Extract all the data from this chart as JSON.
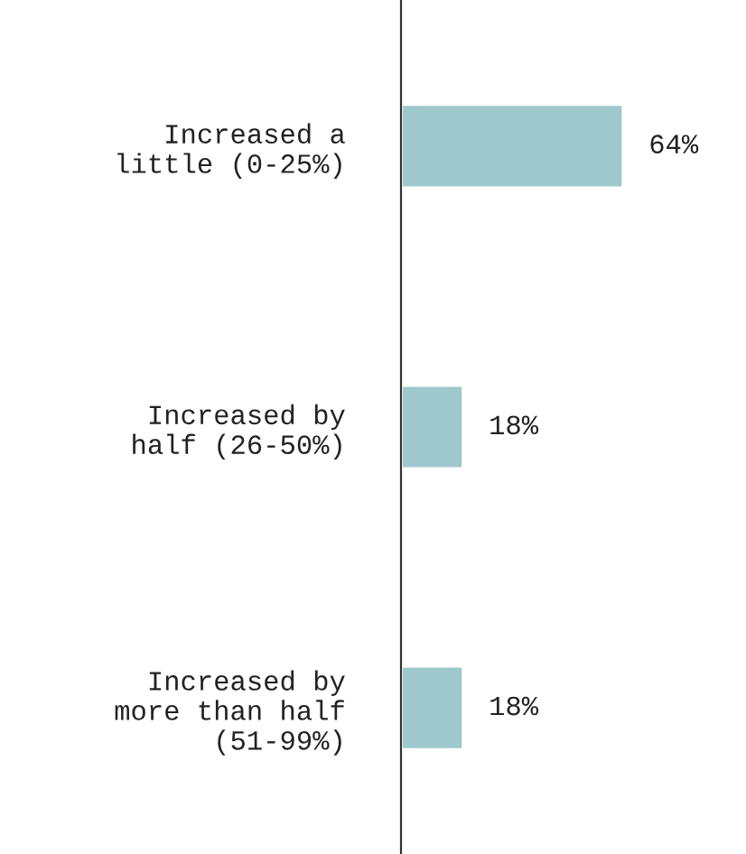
{
  "chart_data": {
    "type": "bar",
    "orientation": "horizontal",
    "categories": [
      "Increased a\nlittle (0-25%)",
      "Increased by\nhalf (26-50%)",
      "Increased by\nmore than half\n(51-99%)"
    ],
    "values": [
      64,
      18,
      18
    ],
    "value_labels": [
      "64%",
      "18%",
      "18%"
    ],
    "color": "#9fc8cc",
    "grid": false,
    "legend": false
  }
}
